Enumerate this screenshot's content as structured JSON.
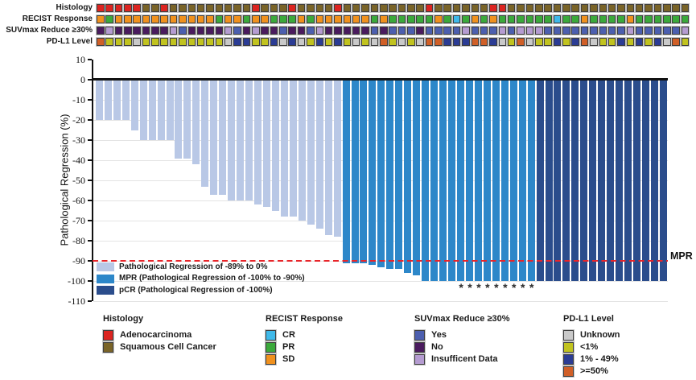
{
  "tracks": {
    "rows": [
      {
        "id": "histology",
        "label": "Histology",
        "cells": [
          "A",
          "A",
          "A",
          "A",
          "A",
          "S",
          "S",
          "A",
          "S",
          "S",
          "S",
          "S",
          "S",
          "S",
          "S",
          "S",
          "S",
          "A",
          "S",
          "S",
          "S",
          "A",
          "S",
          "S",
          "S",
          "S",
          "A",
          "S",
          "S",
          "S",
          "S",
          "S",
          "S",
          "S",
          "S",
          "S",
          "A",
          "S",
          "S",
          "S",
          "S",
          "S",
          "S",
          "A",
          "A",
          "S",
          "S",
          "S",
          "S",
          "S",
          "S",
          "S",
          "S",
          "S",
          "S",
          "S",
          "S",
          "S",
          "S",
          "S",
          "S",
          "S",
          "S",
          "S",
          "S"
        ]
      },
      {
        "id": "recist",
        "label": "RECIST Response",
        "cells": [
          "SD",
          "PR",
          "SD",
          "SD",
          "SD",
          "SD",
          "SD",
          "SD",
          "SD",
          "SD",
          "SD",
          "SD",
          "SD",
          "PR",
          "SD",
          "SD",
          "PR",
          "SD",
          "SD",
          "PR",
          "PR",
          "PR",
          "SD",
          "PR",
          "SD",
          "SD",
          "SD",
          "SD",
          "SD",
          "SD",
          "PR",
          "SD",
          "PR",
          "PR",
          "PR",
          "PR",
          "PR",
          "SD",
          "PR",
          "CR",
          "PR",
          "SD",
          "PR",
          "SD",
          "PR",
          "PR",
          "PR",
          "PR",
          "PR",
          "PR",
          "CR",
          "PR",
          "PR",
          "SD",
          "PR",
          "PR",
          "PR",
          "PR",
          "SD",
          "PR",
          "PR",
          "PR",
          "PR",
          "PR",
          "PR"
        ]
      },
      {
        "id": "suvmax",
        "label": "SUVmax Reduce ≥30%",
        "cells": [
          "NO",
          "INS",
          "NO",
          "NO",
          "NO",
          "NO",
          "NO",
          "NO",
          "INS",
          "YES",
          "NO",
          "NO",
          "NO",
          "NO",
          "INS",
          "YES",
          "NO",
          "INS",
          "NO",
          "NO",
          "YES",
          "NO",
          "NO",
          "YES",
          "INS",
          "NO",
          "NO",
          "NO",
          "NO",
          "NO",
          "YES",
          "NO",
          "YES",
          "YES",
          "YES",
          "NO",
          "YES",
          "YES",
          "YES",
          "YES",
          "INS",
          "YES",
          "YES",
          "YES",
          "INS",
          "YES",
          "INS",
          "INS",
          "INS",
          "YES",
          "YES",
          "YES",
          "YES",
          "YES",
          "YES",
          "YES",
          "YES",
          "YES",
          "INS",
          "YES",
          "YES",
          "YES",
          "YES",
          "YES",
          "INS"
        ]
      },
      {
        "id": "pdl1",
        "label": "PD-L1 Level",
        "cells": [
          "GE50",
          "LT1",
          "LT1",
          "LT1",
          "UNK",
          "LT1",
          "LT1",
          "LT1",
          "LT1",
          "LT1",
          "LT1",
          "LT1",
          "LT1",
          "LT1",
          "UNK",
          "B149",
          "B149",
          "LT1",
          "LT1",
          "B149",
          "UNK",
          "B149",
          "UNK",
          "LT1",
          "B149",
          "LT1",
          "B149",
          "LT1",
          "UNK",
          "LT1",
          "UNK",
          "GE50",
          "LT1",
          "UNK",
          "LT1",
          "UNK",
          "GE50",
          "GE50",
          "B149",
          "B149",
          "B149",
          "GE50",
          "GE50",
          "B149",
          "UNK",
          "LT1",
          "GE50",
          "UNK",
          "LT1",
          "LT1",
          "B149",
          "LT1",
          "B149",
          "GE50",
          "UNK",
          "LT1",
          "LT1",
          "B149",
          "LT1",
          "B149",
          "LT1",
          "B149",
          "UNK",
          "GE50",
          "LT1"
        ]
      }
    ]
  },
  "palette": {
    "A": "#dc2420",
    "S": "#7a6428",
    "CR": "#3fb9e9",
    "PR": "#3ba93b",
    "SD": "#f0911e",
    "YES": "#4c5faf",
    "NO": "#4a1b5e",
    "INS": "#b59cd1",
    "UNK": "#c9c9c9",
    "LT1": "#c1c31f",
    "B149": "#2b3c94",
    "GE50": "#d05f27"
  },
  "chart_data": {
    "type": "bar",
    "title": "",
    "xlabel": "",
    "ylabel": "Pathological Regression (%)",
    "ylim": [
      10,
      -110
    ],
    "yticks": [
      10,
      0,
      -10,
      -20,
      -30,
      -40,
      -50,
      -60,
      -70,
      -80,
      -90,
      -100,
      -110
    ],
    "grid": "horizontal-light",
    "values": [
      -20,
      -20,
      -20,
      -20,
      -25,
      -30,
      -30,
      -30,
      -30,
      -39,
      -39,
      -42,
      -53,
      -57,
      -57,
      -60,
      -60,
      -60,
      -62,
      -63,
      -65,
      -68,
      -68,
      -70,
      -72,
      -74,
      -77,
      -78,
      -91,
      -91,
      -91,
      -92,
      -93,
      -94,
      -94,
      -96,
      -97,
      -100,
      -100,
      -100,
      -100,
      -100,
      -100,
      -100,
      -100,
      -100,
      -100,
      -100,
      -100,
      -100,
      -100,
      -100,
      -100,
      -100,
      -100,
      -100,
      -100,
      -100,
      -100,
      -100,
      -100,
      -100,
      -100,
      -100,
      -100
    ],
    "groups": {
      "light_end_index": 28,
      "mpr_end_index": 50
    },
    "series_legend": [
      {
        "key": "light",
        "label": "Pathological Regression of -89% to 0%",
        "color": "#b9c8e6"
      },
      {
        "key": "mpr",
        "label": "MPR (Pathological Regression of -100% to -90%)",
        "color": "#2d87c9"
      },
      {
        "key": "pcr",
        "label": "pCR (Pathological Regression of -100%)",
        "color": "#2b4d8c"
      }
    ],
    "mpr_line": {
      "value": -90,
      "label": "MPR",
      "color": "#e8252a"
    },
    "asterisk_bars": [
      42,
      43,
      44,
      45,
      46,
      47,
      48,
      49,
      50
    ],
    "asterisk_symbol": "*"
  },
  "legend_groups": [
    {
      "header": "Histology",
      "items": [
        {
          "label": "Adenocarcinoma",
          "color_key": "A"
        },
        {
          "label": "Squamous Cell Cancer",
          "color_key": "S"
        }
      ]
    },
    {
      "header": "RECIST Response",
      "items": [
        {
          "label": "CR",
          "color_key": "CR"
        },
        {
          "label": "PR",
          "color_key": "PR"
        },
        {
          "label": "SD",
          "color_key": "SD"
        }
      ]
    },
    {
      "header": "SUVmax Reduce ≥30%",
      "items": [
        {
          "label": "Yes",
          "color_key": "YES"
        },
        {
          "label": "No",
          "color_key": "NO"
        },
        {
          "label": "Insufficent Data",
          "color_key": "INS"
        }
      ]
    },
    {
      "header": "PD-L1 Level",
      "items": [
        {
          "label": "Unknown",
          "color_key": "UNK"
        },
        {
          "label": "<1%",
          "color_key": "LT1"
        },
        {
          "label": "1% - 49%",
          "color_key": "B149"
        },
        {
          "label": ">=50%",
          "color_key": "GE50"
        }
      ]
    }
  ]
}
